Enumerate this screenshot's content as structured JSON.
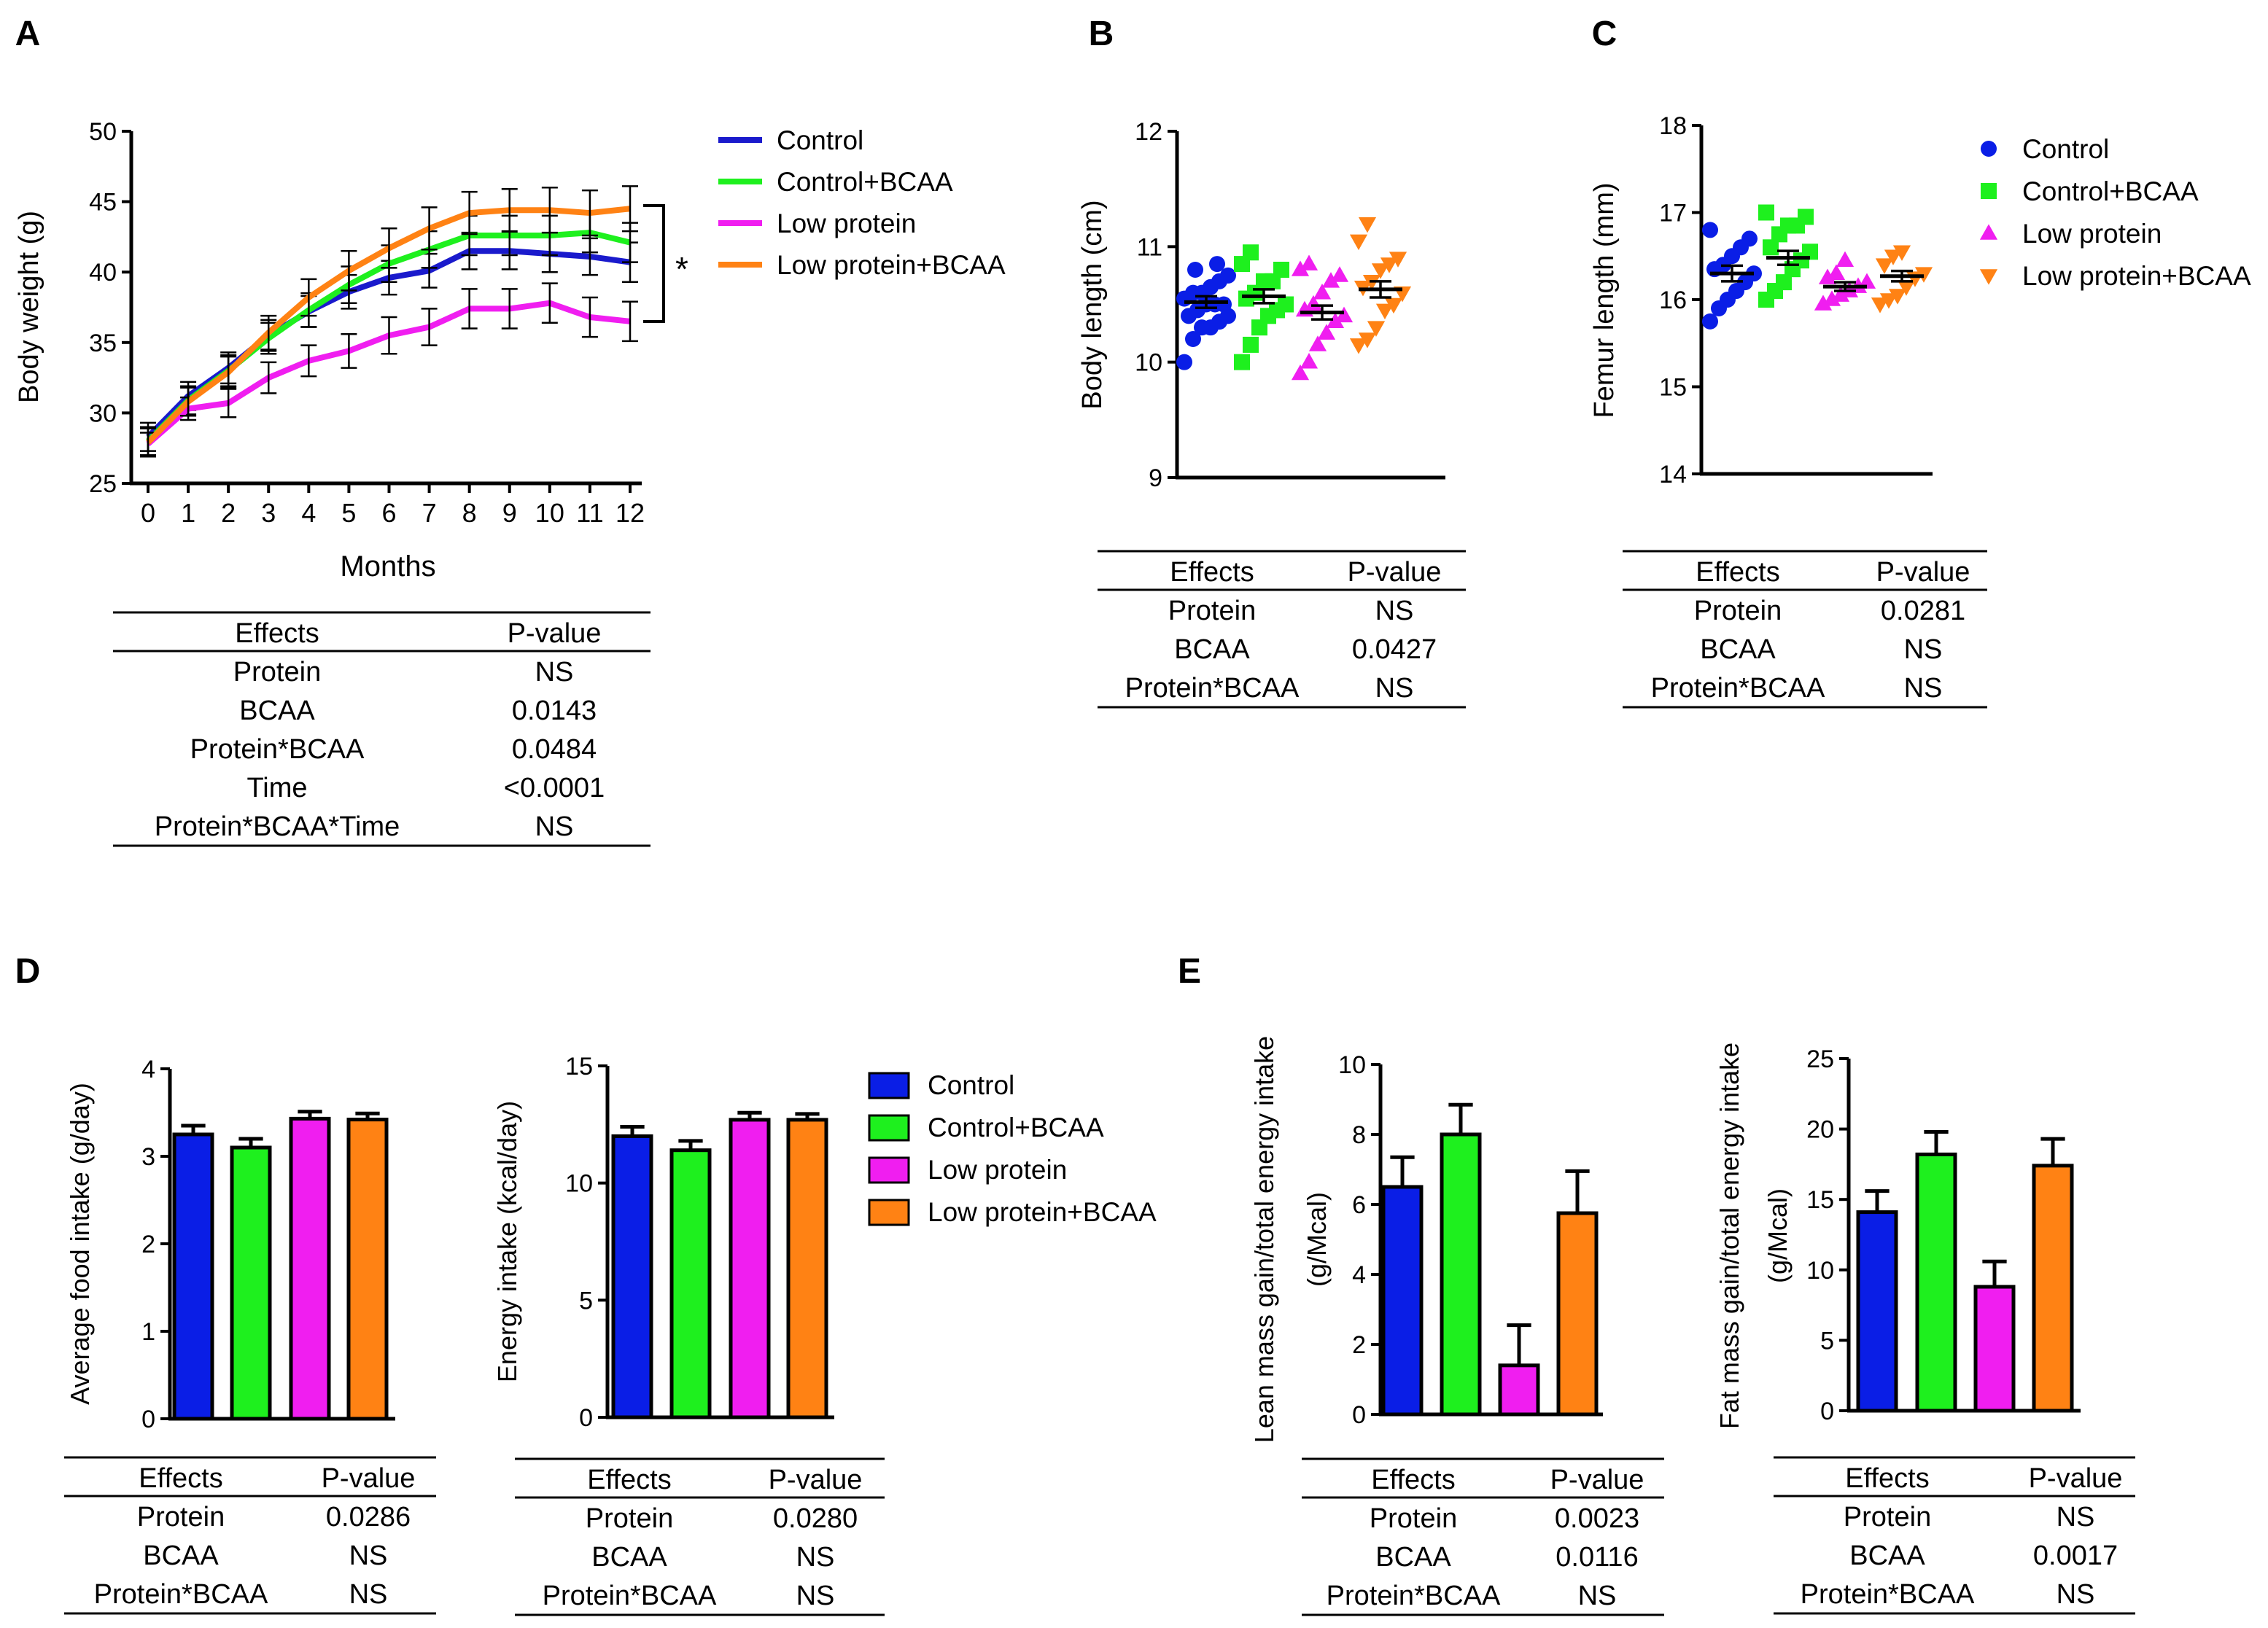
{
  "series_names": [
    "Control",
    "Control+BCAA",
    "Low protein",
    "Low protein+BCAA"
  ],
  "colors": {
    "control": "#0a1ee6",
    "control_bcaa": "#1ef01e",
    "low_protein": "#f01ef0",
    "low_protein_bcaa": "#ff8214",
    "control_line": "#1a1acc"
  },
  "panels": {
    "A": {
      "letter": "A",
      "significance": "*",
      "table": {
        "header": [
          "Effects",
          "P-value"
        ],
        "rows": [
          [
            "Protein",
            "NS"
          ],
          [
            "BCAA",
            "0.0143"
          ],
          [
            "Protein*BCAA",
            "0.0484"
          ],
          [
            "Time",
            "<0.0001"
          ],
          [
            "Protein*BCAA*Time",
            "NS"
          ]
        ]
      }
    },
    "B": {
      "letter": "B",
      "table": {
        "header": [
          "Effects",
          "P-value"
        ],
        "rows": [
          [
            "Protein",
            "NS"
          ],
          [
            "BCAA",
            "0.0427"
          ],
          [
            "Protein*BCAA",
            "NS"
          ]
        ]
      }
    },
    "C": {
      "letter": "C",
      "table": {
        "header": [
          "Effects",
          "P-value"
        ],
        "rows": [
          [
            "Protein",
            "0.0281"
          ],
          [
            "BCAA",
            "NS"
          ],
          [
            "Protein*BCAA",
            "NS"
          ]
        ]
      }
    },
    "D": {
      "letter": "D",
      "table1": {
        "header": [
          "Effects",
          "P-value"
        ],
        "rows": [
          [
            "Protein",
            "0.0286"
          ],
          [
            "BCAA",
            "NS"
          ],
          [
            "Protein*BCAA",
            "NS"
          ]
        ]
      },
      "table2": {
        "header": [
          "Effects",
          "P-value"
        ],
        "rows": [
          [
            "Protein",
            "0.0280"
          ],
          [
            "BCAA",
            "NS"
          ],
          [
            "Protein*BCAA",
            "NS"
          ]
        ]
      }
    },
    "E": {
      "letter": "E",
      "table1": {
        "header": [
          "Effects",
          "P-value"
        ],
        "rows": [
          [
            "Protein",
            "0.0023"
          ],
          [
            "BCAA",
            "0.0116"
          ],
          [
            "Protein*BCAA",
            "NS"
          ]
        ]
      },
      "table2": {
        "header": [
          "Effects",
          "P-value"
        ],
        "rows": [
          [
            "Protein",
            "NS"
          ],
          [
            "BCAA",
            "0.0017"
          ],
          [
            "Protein*BCAA",
            "NS"
          ]
        ]
      }
    }
  },
  "chart_data": [
    {
      "id": "A",
      "type": "line",
      "xlabel": "Months",
      "ylabel": "Body weight (g)",
      "x": [
        0,
        1,
        2,
        3,
        4,
        5,
        6,
        7,
        8,
        9,
        10,
        11,
        12
      ],
      "xlim": [
        0,
        12
      ],
      "ylim": [
        25,
        50
      ],
      "yticks": [
        25,
        30,
        35,
        40,
        45,
        50
      ],
      "series": [
        {
          "name": "Control",
          "values": [
            28.3,
            31.2,
            33.2,
            35.5,
            37.2,
            38.6,
            39.6,
            40.1,
            41.5,
            41.5,
            41.3,
            41.1,
            40.7
          ],
          "err": [
            1.0,
            1.0,
            1.1,
            1.1,
            1.1,
            1.2,
            1.2,
            1.2,
            1.3,
            1.3,
            1.3,
            1.3,
            1.4
          ]
        },
        {
          "name": "Control+BCAA",
          "values": [
            28.0,
            30.9,
            33.0,
            35.3,
            37.3,
            39.1,
            40.6,
            41.6,
            42.6,
            42.6,
            42.6,
            42.8,
            42.1
          ],
          "err": [
            1.0,
            1.0,
            1.1,
            1.1,
            1.2,
            1.3,
            1.3,
            1.3,
            1.4,
            1.4,
            1.4,
            1.4,
            1.4
          ]
        },
        {
          "name": "Low protein",
          "values": [
            27.8,
            30.3,
            30.7,
            32.5,
            33.7,
            34.4,
            35.5,
            36.1,
            37.4,
            37.4,
            37.8,
            36.8,
            36.5
          ],
          "err": [
            0.8,
            0.8,
            1.0,
            1.1,
            1.1,
            1.2,
            1.3,
            1.3,
            1.4,
            1.4,
            1.4,
            1.4,
            1.4
          ]
        },
        {
          "name": "Low protein+BCAA",
          "values": [
            27.9,
            30.8,
            32.9,
            35.7,
            38.2,
            40.1,
            41.7,
            43.1,
            44.2,
            44.4,
            44.4,
            44.2,
            44.5
          ],
          "err": [
            1.0,
            1.0,
            1.1,
            1.2,
            1.3,
            1.4,
            1.4,
            1.5,
            1.5,
            1.5,
            1.6,
            1.6,
            1.6
          ]
        }
      ]
    },
    {
      "id": "B",
      "type": "scatter",
      "ylabel": "Body length (cm)",
      "ylim": [
        9,
        12
      ],
      "yticks": [
        9,
        10,
        11,
        12
      ],
      "groups": [
        {
          "name": "Control",
          "marker": "circle",
          "mean": 10.52,
          "sem": 0.05,
          "points": [
            10.0,
            10.2,
            10.3,
            10.3,
            10.35,
            10.4,
            10.4,
            10.45,
            10.5,
            10.5,
            10.5,
            10.55,
            10.6,
            10.6,
            10.65,
            10.7,
            10.75,
            10.8,
            10.85
          ]
        },
        {
          "name": "Control+BCAA",
          "marker": "square",
          "mean": 10.57,
          "sem": 0.06,
          "points": [
            10.0,
            10.15,
            10.3,
            10.4,
            10.45,
            10.5,
            10.55,
            10.6,
            10.7,
            10.7,
            10.8,
            10.85,
            10.95
          ]
        },
        {
          "name": "Low protein",
          "marker": "triangle-up",
          "mean": 10.43,
          "sem": 0.06,
          "points": [
            9.9,
            10.0,
            10.15,
            10.25,
            10.35,
            10.4,
            10.45,
            10.5,
            10.6,
            10.7,
            10.75,
            10.8,
            10.85
          ]
        },
        {
          "name": "Low protein+BCAA",
          "marker": "triangle-down",
          "mean": 10.63,
          "sem": 0.07,
          "points": [
            10.15,
            10.2,
            10.3,
            10.45,
            10.5,
            10.6,
            10.65,
            10.7,
            10.8,
            10.85,
            10.9,
            11.05,
            11.2
          ]
        }
      ]
    },
    {
      "id": "C",
      "type": "scatter",
      "ylabel": "Femur length (mm)",
      "ylim": [
        14,
        18
      ],
      "yticks": [
        14,
        15,
        16,
        17,
        18
      ],
      "legend": [
        "Control",
        "Control+BCAA",
        "Low protein",
        "Low protein+BCAA"
      ],
      "groups": [
        {
          "name": "Control",
          "marker": "circle",
          "mean": 16.3,
          "sem": 0.09,
          "points": [
            15.75,
            15.9,
            16.0,
            16.1,
            16.2,
            16.3,
            16.35,
            16.4,
            16.5,
            16.6,
            16.7,
            16.8
          ]
        },
        {
          "name": "Control+BCAA",
          "marker": "square",
          "mean": 16.48,
          "sem": 0.08,
          "points": [
            16.0,
            16.1,
            16.2,
            16.35,
            16.45,
            16.55,
            16.6,
            16.75,
            16.85,
            16.85,
            16.95,
            17.0
          ]
        },
        {
          "name": "Low protein",
          "marker": "triangle-up",
          "mean": 16.15,
          "sem": 0.05,
          "points": [
            15.95,
            16.0,
            16.05,
            16.1,
            16.15,
            16.2,
            16.25,
            16.3,
            16.45
          ]
        },
        {
          "name": "Low protein+BCAA",
          "marker": "triangle-down",
          "mean": 16.27,
          "sem": 0.06,
          "points": [
            15.95,
            16.0,
            16.05,
            16.15,
            16.25,
            16.3,
            16.4,
            16.5,
            16.55
          ]
        }
      ]
    },
    {
      "id": "D1",
      "type": "bar",
      "ylabel": "Average food intake (g/day)",
      "ylim": [
        0,
        4
      ],
      "yticks": [
        0,
        1,
        2,
        3,
        4
      ],
      "categories": [
        "Control",
        "Control+BCAA",
        "Low protein",
        "Low protein+BCAA"
      ],
      "values": [
        3.25,
        3.1,
        3.43,
        3.42
      ],
      "err": [
        0.1,
        0.1,
        0.08,
        0.07
      ]
    },
    {
      "id": "D2",
      "type": "bar",
      "ylabel": "Energy intake (kcal/day)",
      "ylim": [
        0,
        15
      ],
      "yticks": [
        0,
        5,
        10,
        15
      ],
      "categories": [
        "Control",
        "Control+BCAA",
        "Low protein",
        "Low protein+BCAA"
      ],
      "values": [
        12.0,
        11.4,
        12.7,
        12.7
      ],
      "err": [
        0.4,
        0.4,
        0.3,
        0.25
      ],
      "legend": [
        "Control",
        "Control+BCAA",
        "Low protein",
        "Low protein+BCAA"
      ]
    },
    {
      "id": "E1",
      "type": "bar",
      "ylabel": "Lean mass gain/total energy intake",
      "ylabel2": "(g/Mcal)",
      "ylim": [
        0,
        10
      ],
      "yticks": [
        0,
        2,
        4,
        6,
        8,
        10
      ],
      "categories": [
        "Control",
        "Control+BCAA",
        "Low protein",
        "Low protein+BCAA"
      ],
      "values": [
        6.5,
        8.0,
        1.4,
        5.75
      ],
      "err": [
        0.85,
        0.85,
        1.15,
        1.2
      ]
    },
    {
      "id": "E2",
      "type": "bar",
      "ylabel": "Fat mass gain/total energy intake",
      "ylabel2": "(g/Mcal)",
      "ylim": [
        0,
        25
      ],
      "yticks": [
        0,
        5,
        10,
        15,
        20,
        25
      ],
      "categories": [
        "Control",
        "Control+BCAA",
        "Low protein",
        "Low protein+BCAA"
      ],
      "values": [
        14.1,
        18.2,
        8.8,
        17.4
      ],
      "err": [
        1.5,
        1.6,
        1.8,
        1.9
      ]
    }
  ]
}
